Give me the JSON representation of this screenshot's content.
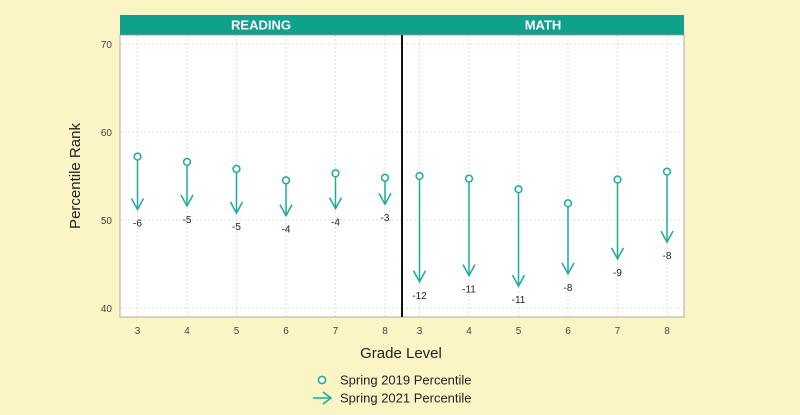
{
  "chart_data": {
    "type": "arrow-dot",
    "ylabel": "Percentile Rank",
    "xlabel": "Grade Level",
    "ylim": [
      39,
      71
    ],
    "y_ticks": [
      40,
      50,
      60,
      70
    ],
    "grid": true,
    "legend_position": "bottom-center",
    "legend": [
      {
        "label": "Spring 2019 Percentile",
        "marker": "circle"
      },
      {
        "label": "Spring 2021 Percentile",
        "marker": "arrow"
      }
    ],
    "colors": {
      "accent": "#1aab9b",
      "panel_header": "#0fa18b",
      "panel_bg": "#ffffff",
      "grid": "#d8d8d8",
      "page_bg": "#fbf5c6"
    },
    "panels": [
      {
        "title": "READING",
        "categories": [
          "3",
          "4",
          "5",
          "6",
          "7",
          "8"
        ],
        "series": [
          {
            "name": "Spring 2019 Percentile",
            "values": [
              57.2,
              56.6,
              55.8,
              54.5,
              55.3,
              54.8
            ]
          },
          {
            "name": "Spring 2021 Percentile",
            "values": [
              51.2,
              51.6,
              50.8,
              50.5,
              51.3,
              51.8
            ]
          }
        ],
        "change_labels": [
          "-6",
          "-5",
          "-5",
          "-4",
          "-4",
          "-3"
        ]
      },
      {
        "title": "MATH",
        "categories": [
          "3",
          "4",
          "5",
          "6",
          "7",
          "8"
        ],
        "series": [
          {
            "name": "Spring 2019 Percentile",
            "values": [
              55.0,
              54.7,
              53.5,
              51.9,
              54.6,
              55.5
            ]
          },
          {
            "name": "Spring 2021 Percentile",
            "values": [
              43.0,
              43.7,
              42.5,
              43.9,
              45.6,
              47.5
            ]
          }
        ],
        "change_labels": [
          "-12",
          "-11",
          "-11",
          "-8",
          "-9",
          "-8"
        ]
      }
    ]
  }
}
